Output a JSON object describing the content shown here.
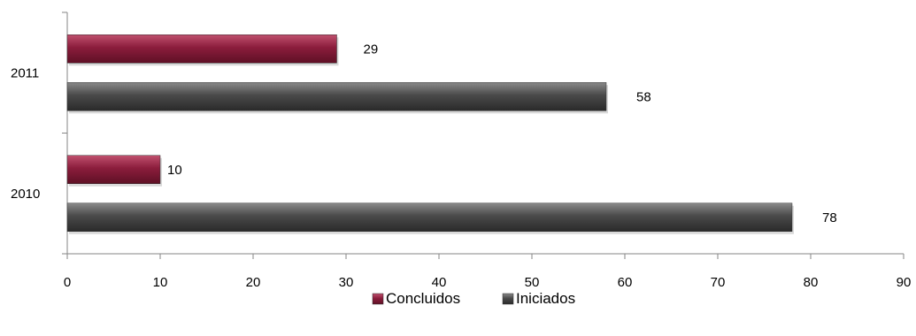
{
  "chart_data": {
    "type": "bar",
    "orientation": "horizontal",
    "title": "",
    "xlabel": "",
    "ylabel": "",
    "categories": [
      "2011",
      "2010"
    ],
    "xlim": [
      0,
      90
    ],
    "x_ticks": [
      0,
      10,
      20,
      30,
      40,
      50,
      60,
      70,
      80,
      90
    ],
    "grid": false,
    "legend_position": "bottom",
    "series": [
      {
        "name": "Concluidos",
        "values": [
          29,
          10
        ],
        "color": "#8b1d3c"
      },
      {
        "name": "Iniciados",
        "values": [
          58,
          78
        ],
        "color": "#4a4a4a"
      }
    ],
    "data_labels": true
  }
}
